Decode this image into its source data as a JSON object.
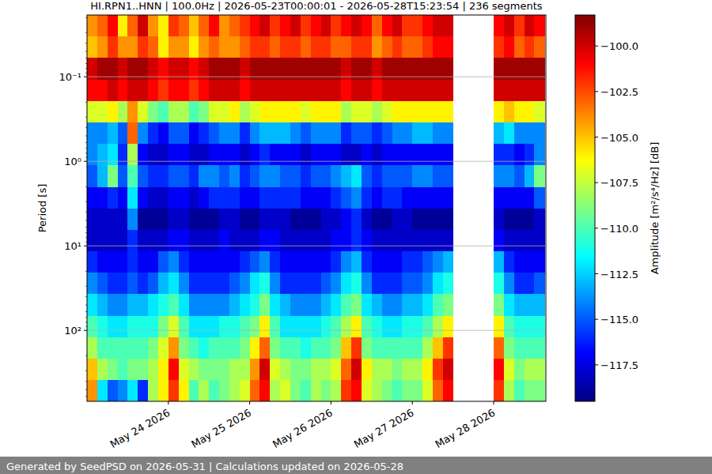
{
  "chart_data": {
    "type": "heatmap",
    "title": "HI.RPN1..HNN | 100.0Hz | 2026-05-23T00:00:01 - 2026-05-28T15:23:54 | 236 segments",
    "y_label": "Period [s]",
    "footer": "Generated by SeedPSD on 2026-05-31 | Calculations updated on 2026-05-28",
    "log": "y",
    "grid": true,
    "xlim": [
      "2026-05-23T00:00:01",
      "2026-05-28T15:23:54"
    ],
    "xticks": [
      {
        "value": "2026-05-24T00:00",
        "label": "May 24 2026"
      },
      {
        "value": "2026-05-25T00:00",
        "label": "May 25 2026"
      },
      {
        "value": "2026-05-26T00:00",
        "label": "May 26 2026"
      },
      {
        "value": "2026-05-27T00:00",
        "label": "May 27 2026"
      },
      {
        "value": "2026-05-28T00:00",
        "label": "May 28 2026"
      }
    ],
    "ylim": [
      690,
      0.0186
    ],
    "yticks": [
      {
        "value": 0.1,
        "label": "10⁻¹"
      },
      {
        "value": 1,
        "label": "10⁰"
      },
      {
        "value": 10,
        "label": "10¹"
      },
      {
        "value": 100,
        "label": "10²"
      }
    ],
    "x": [
      "2026-05-23T00:00",
      "2026-05-23T03:00",
      "2026-05-23T06:00",
      "2026-05-23T09:00",
      "2026-05-23T12:00",
      "2026-05-23T15:00",
      "2026-05-23T18:00",
      "2026-05-23T21:00",
      "2026-05-24T00:00",
      "2026-05-24T03:00",
      "2026-05-24T06:00",
      "2026-05-24T09:00",
      "2026-05-24T12:00",
      "2026-05-24T15:00",
      "2026-05-24T18:00",
      "2026-05-24T21:00",
      "2026-05-25T00:00",
      "2026-05-25T03:00",
      "2026-05-25T06:00",
      "2026-05-25T09:00",
      "2026-05-25T12:00",
      "2026-05-25T15:00",
      "2026-05-25T18:00",
      "2026-05-25T21:00",
      "2026-05-26T00:00",
      "2026-05-26T03:00",
      "2026-05-26T06:00",
      "2026-05-26T09:00",
      "2026-05-26T12:00",
      "2026-05-26T15:00",
      "2026-05-26T18:00",
      "2026-05-26T21:00",
      "2026-05-27T00:00",
      "2026-05-27T03:00",
      "2026-05-27T06:00",
      "2026-05-27T09:00",
      "2026-05-27T12:00",
      "2026-05-27T15:00",
      "2026-05-27T18:00",
      "2026-05-27T21:00",
      "2026-05-28T00:00",
      "2026-05-28T03:00",
      "2026-05-28T06:00",
      "2026-05-28T09:00",
      "2026-05-28T12:00"
    ],
    "y": [
      0.0249,
      0.0448,
      0.0804,
      0.144,
      0.259,
      0.465,
      0.834,
      1.5,
      2.69,
      4.82,
      8.65,
      15.5,
      27.9,
      50,
      89.7,
      161,
      289,
      519
    ],
    "values": [
      [
        -104,
        -103,
        -101,
        -106,
        -103,
        -100,
        -104,
        -106,
        -102,
        -103,
        -105,
        -103,
        -101,
        -104,
        -103,
        -102,
        -101,
        -100,
        -102,
        -101,
        -100,
        -102,
        -101,
        -100,
        -102,
        -101,
        -100,
        -101,
        -103,
        -101,
        -100,
        -102,
        -102,
        -101,
        -100,
        -100,
        null,
        null,
        null,
        null,
        -101,
        -100,
        -102,
        -100,
        -101
      ],
      [
        -105,
        -104,
        -102,
        -104,
        -104,
        -102,
        -103,
        -106,
        -104,
        -104,
        -106,
        -104,
        -103,
        -104,
        -104,
        -103,
        -102,
        -102,
        -103,
        -102,
        -102,
        -103,
        -102,
        -102,
        -103,
        -103,
        -102,
        -102,
        -104,
        -103,
        -102,
        -103,
        -103,
        -102,
        -101,
        -101,
        null,
        null,
        null,
        null,
        -102,
        -101,
        -103,
        -102,
        -103
      ],
      [
        -100,
        -99,
        -99,
        -100,
        -99,
        -99,
        -100,
        -101,
        -100,
        -100,
        -101,
        -100,
        -99,
        -99,
        -99,
        -100,
        -99,
        -99,
        -99,
        -99,
        -99,
        -99,
        -99,
        -99,
        -99,
        -100,
        -99,
        -99,
        -100,
        -99,
        -99,
        -99,
        -99,
        -99,
        -99,
        -99,
        null,
        null,
        null,
        null,
        -99,
        -99,
        -99,
        -99,
        -99
      ],
      [
        -101,
        -101,
        -100,
        -101,
        -100,
        -100,
        -101,
        -102,
        -101,
        -101,
        -102,
        -101,
        -100,
        -100,
        -100,
        -101,
        -100,
        -100,
        -100,
        -100,
        -100,
        -100,
        -100,
        -100,
        -100,
        -101,
        -100,
        -100,
        -101,
        -100,
        -100,
        -100,
        -100,
        -100,
        -100,
        -100,
        null,
        null,
        null,
        null,
        -100,
        -100,
        -100,
        -100,
        -100
      ],
      [
        -107,
        -107,
        -106,
        -108,
        -104,
        -107,
        -109,
        -110,
        -108,
        -108,
        -110,
        -109,
        -107,
        -107,
        -106,
        -108,
        -107,
        -106,
        -106,
        -106,
        -106,
        -107,
        -106,
        -106,
        -106,
        -108,
        -107,
        -107,
        -108,
        -107,
        -106,
        -106,
        -106,
        -106,
        -106,
        -106,
        null,
        null,
        null,
        null,
        -106,
        -105,
        -106,
        -106,
        -107
      ],
      [
        -114,
        -114,
        -113,
        -115,
        -103,
        -114,
        -116,
        -117,
        -115,
        -115,
        -117,
        -116,
        -115,
        -114,
        -114,
        -116,
        -114,
        -113,
        -113,
        -113,
        -114,
        -115,
        -114,
        -114,
        -114,
        -116,
        -115,
        -115,
        -116,
        -115,
        -114,
        -114,
        -113,
        -113,
        -114,
        -114,
        null,
        null,
        null,
        null,
        -113,
        -112,
        -114,
        -114,
        -114
      ],
      [
        -114,
        -113,
        -112,
        -116,
        -108,
        -117,
        -118,
        -118,
        -117,
        -117,
        -118,
        -118,
        -117,
        -117,
        -117,
        -118,
        -117,
        -116,
        -117,
        -117,
        -117,
        -118,
        -117,
        -117,
        -117,
        -118,
        -118,
        -117,
        -118,
        -117,
        -117,
        -117,
        -117,
        -117,
        -117,
        -117,
        null,
        null,
        null,
        null,
        -116,
        -116,
        -117,
        -116,
        -114
      ],
      [
        -115,
        -113,
        -109,
        -115,
        -110,
        -115,
        -116,
        -116,
        -115,
        -115,
        -116,
        -114,
        -114,
        -115,
        -114,
        -116,
        -115,
        -114,
        -114,
        -115,
        -115,
        -116,
        -115,
        -115,
        -114,
        -113,
        -112,
        -115,
        -116,
        -115,
        -115,
        -115,
        -114,
        -114,
        -115,
        -115,
        null,
        null,
        null,
        null,
        -114,
        -114,
        -115,
        -113,
        -109
      ],
      [
        -117,
        -117,
        -116,
        -117,
        -112,
        -117,
        -118,
        -118,
        -117,
        -117,
        -118,
        -117,
        -116,
        -116,
        -116,
        -117,
        -117,
        -116,
        -116,
        -116,
        -116,
        -117,
        -117,
        -117,
        -116,
        -115,
        -114,
        -116,
        -117,
        -116,
        -116,
        -117,
        -117,
        -117,
        -117,
        -117,
        null,
        null,
        null,
        null,
        -117,
        -117,
        -117,
        -117,
        -115
      ],
      [
        -118,
        -118,
        -118,
        -118,
        -114,
        -119,
        -119,
        -119,
        -118,
        -118,
        -119,
        -119,
        -119,
        -118,
        -118,
        -119,
        -119,
        -118,
        -118,
        -118,
        -119,
        -119,
        -119,
        -118,
        -118,
        -117,
        -116,
        -118,
        -119,
        -119,
        -118,
        -118,
        -119,
        -119,
        -119,
        -119,
        null,
        null,
        null,
        null,
        -118,
        -119,
        -119,
        -119,
        -118
      ],
      [
        -118,
        -118,
        -118,
        -118,
        -116,
        -118,
        -118,
        -118,
        -117,
        -117,
        -118,
        -118,
        -118,
        -117,
        -118,
        -118,
        -118,
        -117,
        -117,
        -118,
        -118,
        -118,
        -118,
        -118,
        -117,
        -117,
        -116,
        -117,
        -118,
        -118,
        -118,
        -118,
        -118,
        -118,
        -118,
        -118,
        null,
        null,
        null,
        null,
        -117,
        -118,
        -118,
        -118,
        -118
      ],
      [
        -116,
        -117,
        -117,
        -117,
        -116,
        -117,
        -117,
        -115,
        -114,
        -116,
        -117,
        -117,
        -117,
        -117,
        -117,
        -116,
        -115,
        -114,
        -116,
        -117,
        -117,
        -117,
        -117,
        -117,
        -116,
        -114,
        -113,
        -116,
        -117,
        -117,
        -117,
        -116,
        -116,
        -115,
        -114,
        -113,
        null,
        null,
        null,
        null,
        -113,
        -116,
        -117,
        -117,
        -117
      ],
      [
        -114,
        -115,
        -116,
        -116,
        -115,
        -116,
        -115,
        -113,
        -112,
        -114,
        -116,
        -116,
        -116,
        -116,
        -115,
        -114,
        -112,
        -111,
        -114,
        -116,
        -116,
        -116,
        -116,
        -115,
        -114,
        -112,
        -111,
        -114,
        -116,
        -116,
        -116,
        -115,
        -115,
        -114,
        -112,
        -111,
        null,
        null,
        null,
        null,
        -111,
        -114,
        -116,
        -116,
        -115
      ],
      [
        -112,
        -113,
        -114,
        -114,
        -113,
        -113,
        -112,
        -111,
        -110,
        -112,
        -114,
        -114,
        -114,
        -114,
        -113,
        -112,
        -111,
        -109,
        -112,
        -113,
        -114,
        -114,
        -114,
        -113,
        -112,
        -110,
        -109,
        -112,
        -113,
        -114,
        -114,
        -113,
        -113,
        -112,
        -110,
        -109,
        null,
        null,
        null,
        null,
        -109,
        -112,
        -113,
        -113,
        -113
      ],
      [
        -110,
        -111,
        -112,
        -112,
        -111,
        -111,
        -111,
        -109,
        -107,
        -110,
        -112,
        -112,
        -112,
        -111,
        -111,
        -110,
        -109,
        -106,
        -110,
        -112,
        -112,
        -112,
        -112,
        -111,
        -110,
        -108,
        -106,
        -110,
        -111,
        -112,
        -112,
        -111,
        -111,
        -110,
        -108,
        -106,
        null,
        null,
        null,
        null,
        -106,
        -110,
        -111,
        -111,
        -111
      ],
      [
        -108,
        -110,
        -110,
        -110,
        -110,
        -110,
        -109,
        -107,
        -104,
        -109,
        -110,
        -111,
        -110,
        -110,
        -110,
        -109,
        -106,
        -103,
        -109,
        -110,
        -110,
        -111,
        -110,
        -110,
        -109,
        -105,
        -102,
        -109,
        -110,
        -110,
        -110,
        -110,
        -110,
        -108,
        -105,
        -102,
        null,
        null,
        null,
        null,
        -103,
        -109,
        -110,
        -110,
        -110
      ],
      [
        -105,
        -108,
        -109,
        -110,
        -109,
        -109,
        -108,
        -106,
        -101,
        -107,
        -108,
        -109,
        -109,
        -109,
        -108,
        -108,
        -104,
        -100,
        -107,
        -108,
        -109,
        -109,
        -108,
        -108,
        -107,
        -103,
        -100,
        -106,
        -108,
        -108,
        -109,
        -108,
        -108,
        -106,
        -102,
        -100,
        null,
        null,
        null,
        null,
        -101,
        -107,
        -109,
        -108,
        -108
      ],
      [
        -104,
        -112,
        -115,
        -114,
        -112,
        -116,
        -108,
        -106,
        -102,
        -106,
        -110,
        -108,
        -110,
        -109,
        -108,
        -107,
        -103,
        -101,
        -108,
        -107,
        -109,
        -110,
        -108,
        -109,
        -108,
        -102,
        -101,
        -107,
        -108,
        -109,
        -110,
        -109,
        -109,
        -107,
        -103,
        -101,
        null,
        null,
        null,
        null,
        -102,
        -108,
        -110,
        -109,
        -109
      ]
    ],
    "colorbar": {
      "label": "Amplitude [m²/s⁴/Hz] [dB]",
      "range": [
        -119.5,
        -98.3
      ],
      "ticks": [
        {
          "value": -100,
          "label": "−100.0"
        },
        {
          "value": -102.5,
          "label": "−102.5"
        },
        {
          "value": -105,
          "label": "−105.0"
        },
        {
          "value": -107.5,
          "label": "−107.5"
        },
        {
          "value": -110,
          "label": "−110.0"
        },
        {
          "value": -112.5,
          "label": "−112.5"
        },
        {
          "value": -115,
          "label": "−115.0"
        },
        {
          "value": -117.5,
          "label": "−117.5"
        }
      ]
    }
  }
}
